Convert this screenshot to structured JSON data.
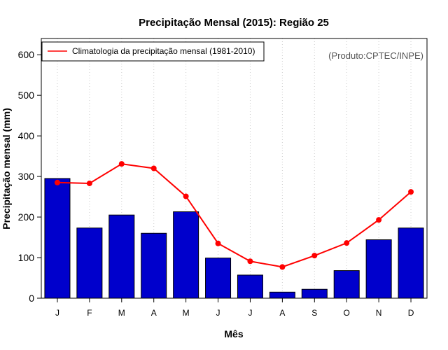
{
  "chart_data": {
    "type": "bar",
    "title": "Precipitação Mensal (2015): Região 25",
    "xlabel": "Mês",
    "ylabel": "Precipitação mensal (mm)",
    "ylim": [
      0,
      640
    ],
    "yticks": [
      0,
      100,
      200,
      300,
      400,
      500,
      600
    ],
    "categories": [
      "J",
      "F",
      "M",
      "A",
      "M",
      "J",
      "J",
      "A",
      "S",
      "O",
      "N",
      "D"
    ],
    "series": [
      {
        "name": "Precipitação mensal 2015",
        "type": "bar",
        "color": "#0000cc",
        "values": [
          295,
          173,
          205,
          160,
          213,
          99,
          57,
          15,
          22,
          68,
          144,
          173
        ]
      },
      {
        "name": "Climatologia da precipitação mensal (1981-2010)",
        "type": "line",
        "color": "#ff0000",
        "values": [
          285,
          283,
          331,
          320,
          251,
          135,
          91,
          77,
          105,
          136,
          193,
          262
        ]
      }
    ],
    "legend": {
      "position": "top-left",
      "entries": [
        "Climatologia da precipitação mensal (1981-2010)"
      ]
    },
    "annotations": [
      "(Produto:CPTEC/INPE)"
    ],
    "grid": "vertical dotted"
  }
}
